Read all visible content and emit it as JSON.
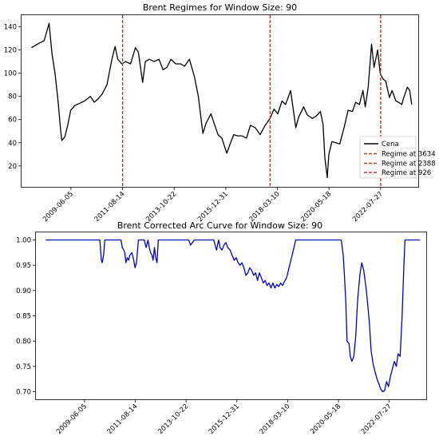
{
  "chart_data": [
    {
      "type": "line",
      "title": "Brent Regimes for Window Size: 90",
      "xlabel": "",
      "ylabel": "",
      "x_ticks": [
        "2009-06-05",
        "2011-08-14",
        "2013-10-22",
        "2015-12-31",
        "2018-03-10",
        "2020-05-18",
        "2022-07-27"
      ],
      "y_ticks": [
        20,
        40,
        60,
        80,
        100,
        120,
        140
      ],
      "xlim": [
        "2007-05-01",
        "2024-03-01"
      ],
      "ylim": [
        2,
        150
      ],
      "grid": false,
      "legend_position": "lower-right",
      "series": [
        {
          "name": "Cena",
          "color": "#000000",
          "style": "solid",
          "x": [
            "2007-10-01",
            "2008-02-01",
            "2008-04-15",
            "2008-07-01",
            "2008-08-15",
            "2008-10-01",
            "2008-11-15",
            "2008-12-25",
            "2009-01-15",
            "2009-03-01",
            "2009-04-15",
            "2009-06-01",
            "2009-08-01",
            "2009-10-15",
            "2010-01-01",
            "2010-04-01",
            "2010-06-01",
            "2010-08-01",
            "2010-10-01",
            "2010-12-15",
            "2011-03-01",
            "2011-04-20",
            "2011-06-01",
            "2011-08-01",
            "2011-10-01",
            "2011-12-15",
            "2012-03-01",
            "2012-04-15",
            "2012-06-20",
            "2012-08-01",
            "2012-10-01",
            "2012-12-15",
            "2013-03-01",
            "2013-05-01",
            "2013-07-01",
            "2013-09-01",
            "2013-11-15",
            "2014-02-01",
            "2014-04-01",
            "2014-06-15",
            "2014-09-01",
            "2014-11-01",
            "2015-01-10",
            "2015-03-01",
            "2015-05-15",
            "2015-07-01",
            "2015-09-01",
            "2015-11-01",
            "2016-01-15",
            "2016-03-01",
            "2016-05-01",
            "2016-07-01",
            "2016-09-01",
            "2016-11-15",
            "2017-01-15",
            "2017-04-01",
            "2017-06-15",
            "2017-09-01",
            "2017-11-15",
            "2018-01-15",
            "2018-03-15",
            "2018-05-20",
            "2018-07-15",
            "2018-10-01",
            "2018-12-20",
            "2019-02-01",
            "2019-04-20",
            "2019-06-15",
            "2019-09-01",
            "2019-11-01",
            "2020-01-05",
            "2020-02-15",
            "2020-03-15",
            "2020-04-20",
            "2020-05-15",
            "2020-07-01",
            "2020-09-01",
            "2020-11-01",
            "2021-01-10",
            "2021-03-10",
            "2021-05-15",
            "2021-07-05",
            "2021-09-01",
            "2021-10-25",
            "2021-12-01",
            "2022-01-15",
            "2022-03-08",
            "2022-04-15",
            "2022-06-10",
            "2022-07-20",
            "2022-09-01",
            "2022-10-15",
            "2022-12-10",
            "2023-01-20",
            "2023-03-20",
            "2023-05-01",
            "2023-06-20",
            "2023-07-15",
            "2023-09-15",
            "2023-10-20",
            "2023-11-20"
          ],
          "values": [
            122,
            126,
            128,
            143,
            117,
            100,
            77,
            52,
            42,
            45,
            55,
            68,
            72,
            74,
            76,
            80,
            75,
            78,
            82,
            90,
            112,
            123,
            112,
            108,
            110,
            108,
            122,
            118,
            92,
            110,
            112,
            110,
            112,
            103,
            105,
            112,
            108,
            108,
            106,
            112,
            97,
            80,
            48,
            57,
            65,
            57,
            47,
            44,
            31,
            38,
            47,
            46,
            46,
            44,
            55,
            53,
            47,
            55,
            61,
            69,
            65,
            76,
            73,
            85,
            53,
            62,
            71,
            64,
            61,
            63,
            67,
            56,
            27,
            10,
            30,
            41,
            40,
            39,
            54,
            68,
            67,
            75,
            73,
            85,
            71,
            88,
            125,
            105,
            120,
            100,
            95,
            93,
            79,
            85,
            76,
            75,
            73,
            78,
            88,
            85,
            73
          ]
        },
        {
          "name": "Regime at 3634",
          "color": "#b03a2e",
          "style": "dashed",
          "x": [
            "2022-07-27"
          ]
        },
        {
          "name": "Regime at 2388",
          "color": "#b03a2e",
          "style": "dashed",
          "x": [
            "2017-11-17"
          ]
        },
        {
          "name": "Regime at 926",
          "color": "#b03a2e",
          "style": "dashed",
          "x": [
            "2011-08-14"
          ]
        }
      ]
    },
    {
      "type": "line",
      "title": "Brent Corrected Arc Curve for Window Size: 90",
      "xlabel": "",
      "ylabel": "",
      "x_ticks": [
        "2009-06-05",
        "2011-08-14",
        "2013-10-22",
        "2015-12-31",
        "2018-03-10",
        "2020-05-18",
        "2022-07-27"
      ],
      "y_ticks": [
        0.7,
        0.75,
        0.8,
        0.85,
        0.9,
        0.95,
        1.0
      ],
      "xlim": [
        "2007-05-01",
        "2024-03-01"
      ],
      "ylim": [
        0.685,
        1.015
      ],
      "grid": false,
      "series": [
        {
          "color": "#0000cc",
          "style": "solid",
          "x": [
            "2007-10-01",
            "2010-02-01",
            "2010-02-25",
            "2010-03-10",
            "2010-04-01",
            "2010-04-20",
            "2010-06-01",
            "2011-01-01",
            "2011-01-20",
            "2011-02-15",
            "2011-03-01",
            "2011-03-20",
            "2011-04-10",
            "2011-05-01",
            "2011-05-20",
            "2011-06-20",
            "2011-07-20",
            "2011-08-10",
            "2011-09-01",
            "2011-10-01",
            "2012-01-01",
            "2012-02-01",
            "2012-03-01",
            "2012-03-20",
            "2012-04-10",
            "2012-05-01",
            "2012-05-20",
            "2012-06-10",
            "2012-07-01",
            "2012-07-20",
            "2012-08-10",
            "2013-01-01",
            "2013-12-01",
            "2014-01-01",
            "2014-03-01",
            "2015-01-01",
            "2015-02-01",
            "2015-02-15",
            "2015-03-01",
            "2015-03-20",
            "2015-04-10",
            "2015-05-10",
            "2015-06-10",
            "2015-07-10",
            "2015-08-10",
            "2015-09-15",
            "2015-10-15",
            "2015-11-20",
            "2015-12-20",
            "2016-01-20",
            "2016-02-20",
            "2016-03-20",
            "2016-04-20",
            "2016-05-20",
            "2016-06-20",
            "2016-07-20",
            "2016-08-20",
            "2016-09-20",
            "2016-10-20",
            "2016-11-20",
            "2016-12-20",
            "2017-01-20",
            "2017-02-20",
            "2017-03-20",
            "2017-04-20",
            "2017-05-20",
            "2017-06-20",
            "2017-07-20",
            "2017-08-20",
            "2017-09-20",
            "2017-10-20",
            "2017-11-20",
            "2017-12-20",
            "2018-01-20",
            "2018-02-20",
            "2018-04-01",
            "2018-05-20",
            "2018-07-15",
            "2019-06-01",
            "2020-07-01",
            "2020-08-01",
            "2020-08-20",
            "2020-09-10",
            "2020-10-01",
            "2020-11-01",
            "2020-11-20",
            "2020-12-15",
            "2021-01-15",
            "2021-02-15",
            "2021-03-15",
            "2021-04-20",
            "2021-05-20",
            "2021-06-20",
            "2021-08-01",
            "2021-09-15",
            "2021-10-15",
            "2021-11-15",
            "2021-12-15",
            "2022-01-15",
            "2022-02-15",
            "2022-03-15",
            "2022-04-15",
            "2022-05-15",
            "2022-06-15",
            "2022-07-15",
            "2022-08-15",
            "2022-09-15",
            "2022-10-15",
            "2022-11-15",
            "2022-12-15",
            "2023-01-15",
            "2023-02-15",
            "2023-03-15",
            "2023-04-01",
            "2023-04-15",
            "2023-05-01",
            "2023-10-15",
            "2023-11-20"
          ],
          "values": [
            1.0,
            1.0,
            0.96,
            0.955,
            0.97,
            1.0,
            1.0,
            1.0,
            0.985,
            0.98,
            0.975,
            0.955,
            0.965,
            0.96,
            0.97,
            0.975,
            0.96,
            0.945,
            0.955,
            1.0,
            1.0,
            0.985,
            1.0,
            0.985,
            0.975,
            0.97,
            0.96,
            0.985,
            0.965,
            0.955,
            1.0,
            1.0,
            1.0,
            0.99,
            1.0,
            1.0,
            0.985,
            0.98,
            0.99,
            1.0,
            0.985,
            0.98,
            0.99,
            0.995,
            0.985,
            0.98,
            0.97,
            0.96,
            0.965,
            0.955,
            0.95,
            0.955,
            0.945,
            0.93,
            0.935,
            0.945,
            0.94,
            0.93,
            0.935,
            0.92,
            0.935,
            0.925,
            0.915,
            0.92,
            0.91,
            0.915,
            0.905,
            0.915,
            0.905,
            0.912,
            0.908,
            0.915,
            0.91,
            0.918,
            0.925,
            0.945,
            0.97,
            1.0,
            1.0,
            1.0,
            0.97,
            0.93,
            0.88,
            0.8,
            0.795,
            0.77,
            0.76,
            0.77,
            0.81,
            0.88,
            0.93,
            0.955,
            0.94,
            0.9,
            0.84,
            0.78,
            0.755,
            0.74,
            0.725,
            0.715,
            0.705,
            0.7,
            0.702,
            0.72,
            0.71,
            0.73,
            0.745,
            0.76,
            0.75,
            0.775,
            0.77,
            0.85,
            0.95,
            1.0,
            1.0,
            1.0,
            1.0,
            1.0
          ]
        }
      ]
    }
  ]
}
